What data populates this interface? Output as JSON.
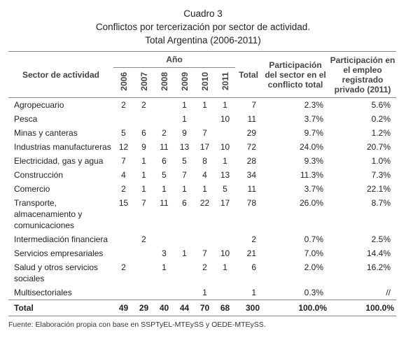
{
  "caption": {
    "label": "Cuadro 3",
    "title": "Conflictos por tercerización por sector de actividad.",
    "subtitle": "Total Argentina (2006-2011)"
  },
  "table": {
    "header": {
      "sector": "Sector de actividad",
      "year_group": "Año",
      "years": [
        2006,
        2007,
        2008,
        2009,
        2010,
        2011
      ],
      "total": "Total",
      "share_conflict": "Participación del sector en el conflicto total",
      "share_employment": "Participación en el empleo registrado privado (2011)"
    },
    "rows": [
      [
        "Agropecuario",
        2,
        2,
        null,
        1,
        1,
        1,
        7,
        "2.3%",
        "5.6%"
      ],
      [
        "Pesca",
        null,
        null,
        null,
        1,
        null,
        10,
        11,
        "3.7%",
        "0.2%"
      ],
      [
        "Minas y canteras",
        5,
        6,
        2,
        9,
        7,
        null,
        29,
        "9.7%",
        "1.2%"
      ],
      [
        "Industrias manufactureras",
        12,
        9,
        11,
        13,
        17,
        10,
        72,
        "24.0%",
        "20.7%"
      ],
      [
        "Electricidad, gas y agua",
        7,
        1,
        6,
        5,
        8,
        1,
        28,
        "9.3%",
        "1.0%"
      ],
      [
        "Construcción",
        4,
        1,
        5,
        7,
        4,
        13,
        34,
        "11.3%",
        "7.3%"
      ],
      [
        "Comercio",
        2,
        1,
        1,
        1,
        1,
        5,
        11,
        "3.7%",
        "22.1%"
      ],
      [
        "Transporte, almacenamiento y comunicaciones",
        15,
        7,
        11,
        6,
        22,
        17,
        78,
        "26.0%",
        "8.7%"
      ],
      [
        "Intermediación financiera",
        null,
        2,
        null,
        null,
        null,
        null,
        2,
        "0.7%",
        "2.5%"
      ],
      [
        "Servicios empresariales",
        null,
        null,
        3,
        1,
        7,
        10,
        21,
        "7.0%",
        "14.4%"
      ],
      [
        "Salud y otros servicios sociales",
        2,
        null,
        1,
        null,
        2,
        1,
        6,
        "2.0%",
        "16.2%"
      ],
      [
        "Multisectoriales",
        null,
        null,
        null,
        null,
        1,
        null,
        1,
        "0.3%",
        "//"
      ]
    ],
    "total_row": [
      "Total",
      49,
      29,
      40,
      44,
      70,
      68,
      300,
      "100.0%",
      "100.0%"
    ]
  },
  "source": "Fuente: Elaboración propia con base en SSPTyEL-MTEySS y OEDE-MTEySS."
}
